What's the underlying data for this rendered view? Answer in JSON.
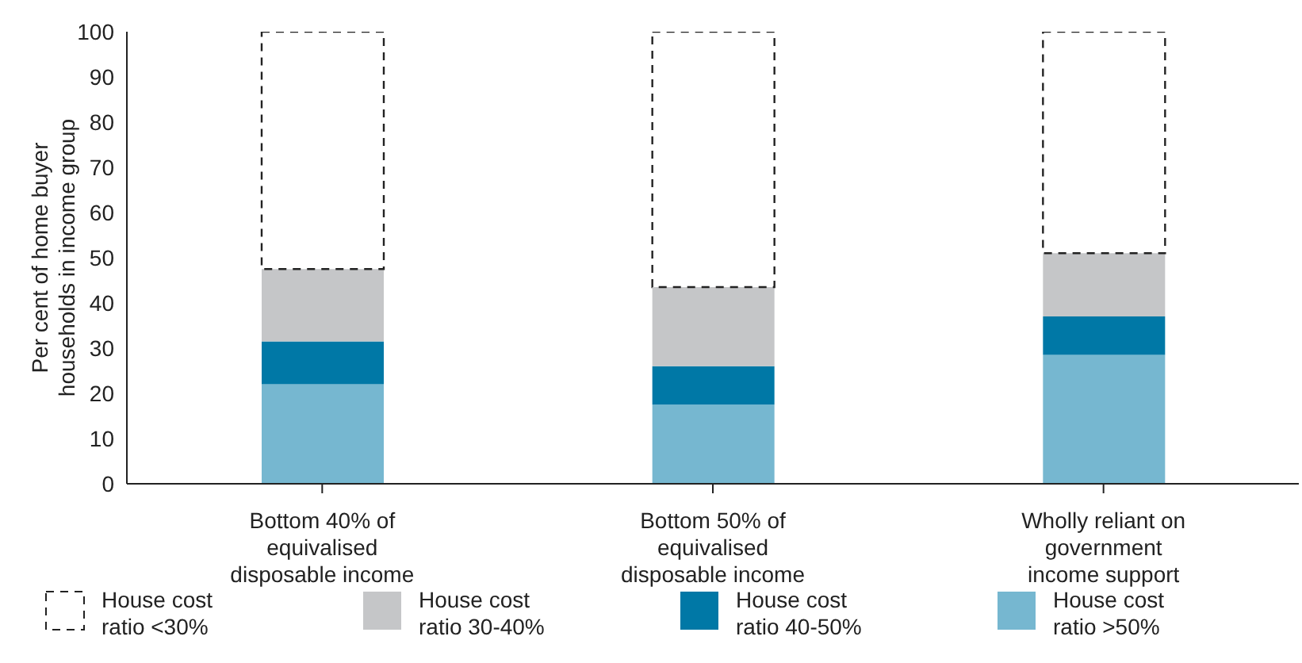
{
  "chart_data": {
    "type": "bar",
    "stacked": true,
    "ylabel": "Per cent of home buyer households in income group",
    "categories": [
      "Bottom 40% of equivalised disposable income",
      "Bottom 50% of equivalised disposable income",
      "Wholly reliant on government income support"
    ],
    "series": [
      {
        "name": "House cost ratio >50%",
        "color": "#76b7d0",
        "values": [
          22,
          17.5,
          28.5
        ]
      },
      {
        "name": "House cost ratio 40-50%",
        "color": "#0078a6",
        "values": [
          9.5,
          8.5,
          8.5
        ]
      },
      {
        "name": "House cost ratio 30-40%",
        "color": "#c5c6c8",
        "values": [
          16,
          17.5,
          14
        ]
      },
      {
        "name": "House cost ratio <30%",
        "color": "#222222",
        "line_style": "dashed",
        "values": [
          52.5,
          56.5,
          49
        ]
      }
    ],
    "ylim": [
      0,
      100
    ],
    "yticks": [
      0,
      10,
      20,
      30,
      40,
      50,
      60,
      70,
      80,
      90,
      100
    ],
    "legend": "bottom"
  }
}
